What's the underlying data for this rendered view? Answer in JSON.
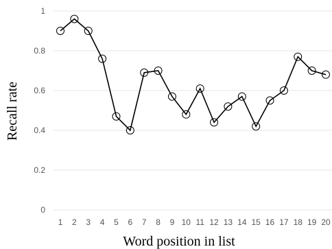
{
  "chart_data": {
    "type": "line",
    "title": "",
    "xlabel": "Word position in list",
    "ylabel": "Recall rate",
    "x": [
      1,
      2,
      3,
      4,
      5,
      6,
      7,
      8,
      9,
      10,
      11,
      12,
      13,
      14,
      15,
      16,
      17,
      18,
      19,
      20
    ],
    "series": [
      {
        "values": [
          0.9,
          0.96,
          0.9,
          0.76,
          0.47,
          0.4,
          0.69,
          0.7,
          0.57,
          0.48,
          0.61,
          0.44,
          0.52,
          0.57,
          0.42,
          0.55,
          0.6,
          0.77,
          0.7,
          0.68
        ]
      }
    ],
    "xticks": [
      "1",
      "2",
      "3",
      "4",
      "5",
      "6",
      "7",
      "8",
      "9",
      "10",
      "11",
      "12",
      "13",
      "14",
      "15",
      "16",
      "17",
      "18",
      "19",
      "20"
    ],
    "yticks": [
      {
        "value": 0,
        "label": "0"
      },
      {
        "value": 0.2,
        "label": "0.2"
      },
      {
        "value": 0.4,
        "label": "0.4"
      },
      {
        "value": 0.6,
        "label": "0.6"
      },
      {
        "value": 0.8,
        "label": "0.8"
      },
      {
        "value": 1,
        "label": "1"
      }
    ],
    "ylim": [
      0,
      1
    ],
    "grid": true,
    "marker": "open-circle",
    "line_color": "#000000"
  }
}
